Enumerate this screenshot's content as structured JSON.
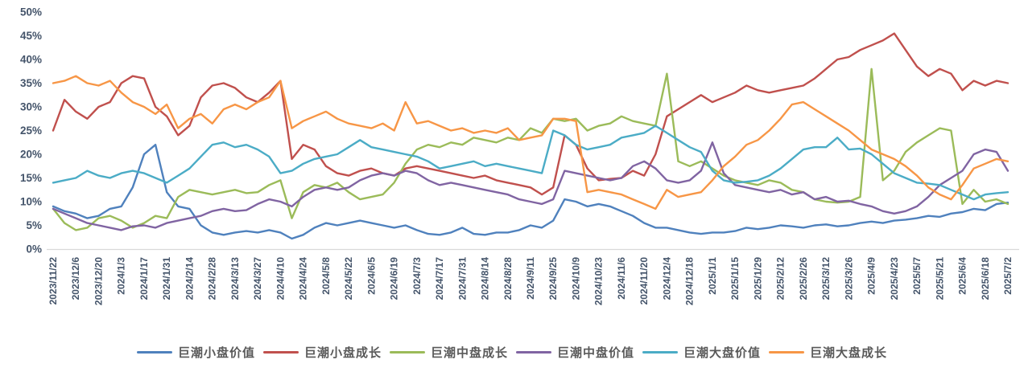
{
  "style": {
    "background": "#FFFFFF",
    "axis_label_color": "#44546A",
    "axis_line_color": "#D9D9D9",
    "legend_text_color": "#595959"
  },
  "chart_data": {
    "type": "line",
    "title": "",
    "xlabel": "",
    "ylabel": "",
    "grid": false,
    "legend_position": "bottom",
    "y_axis": {
      "min": 0,
      "max": 50,
      "tick_step": 5,
      "tick_labels": [
        "0%",
        "5%",
        "10%",
        "15%",
        "20%",
        "25%",
        "30%",
        "35%",
        "40%",
        "45%",
        "50%"
      ]
    },
    "x_axis": {
      "start": "2023/11/22",
      "end": "2025/7/2",
      "tick_interval_days": 14,
      "tick_labels": [
        "2023/11/22",
        "2023/12/6",
        "2023/12/20",
        "2024/1/3",
        "2024/1/17",
        "2024/1/31",
        "2024/2/14",
        "2024/2/28",
        "2024/3/13",
        "2024/3/27",
        "2024/4/10",
        "2024/4/24",
        "2024/5/8",
        "2024/5/22",
        "2024/6/5",
        "2024/6/19",
        "2024/7/3",
        "2024/7/17",
        "2024/7/31",
        "2024/8/14",
        "2024/8/28",
        "2024/9/11",
        "2024/9/25",
        "2024/10/9",
        "2024/10/23",
        "2024/11/6",
        "2024/11/20",
        "2024/12/4",
        "2024/12/18",
        "2025/1/1",
        "2025/1/15",
        "2025/1/29",
        "2025/2/12",
        "2025/2/26",
        "2025/3/12",
        "2025/3/26",
        "2025/4/9",
        "2025/4/23",
        "2025/5/7",
        "2025/5/21",
        "2025/6/4",
        "2025/6/18",
        "2025/7/2"
      ]
    },
    "sample_interval_days": 7,
    "series": [
      {
        "name": "巨潮小盘价值",
        "color": "#4F81BD",
        "values": [
          9,
          8,
          7.5,
          6.5,
          7,
          8.5,
          9,
          13,
          20,
          22,
          12,
          9,
          8.5,
          5,
          3.5,
          3,
          3.5,
          3.8,
          3.5,
          4,
          3.5,
          2.2,
          3,
          4.5,
          5.5,
          5,
          5.5,
          6,
          5.5,
          5,
          4.5,
          5,
          4,
          3.2,
          3,
          3.5,
          4.5,
          3.2,
          3,
          3.5,
          3.5,
          4,
          5,
          4.5,
          6,
          10.5,
          10,
          9,
          9.5,
          9,
          8,
          7,
          5.5,
          4.5,
          4.5,
          4,
          3.5,
          3.2,
          3.5,
          3.5,
          3.8,
          4.5,
          4.2,
          4.5,
          5,
          4.8,
          4.5,
          5,
          5.2,
          4.8,
          5,
          5.5,
          5.8,
          5.5,
          6,
          6.2,
          6.5,
          7,
          6.8,
          7.5,
          7.8,
          8.5,
          8.2,
          9.5,
          9.8
        ]
      },
      {
        "name": "巨潮小盘成长",
        "color": "#C0504D",
        "values": [
          25,
          31.5,
          29,
          27.5,
          30,
          31,
          35,
          36.5,
          36,
          30,
          28,
          24,
          26,
          32,
          34.5,
          35,
          34,
          32,
          31,
          33,
          35.5,
          19,
          22,
          21,
          17.5,
          16,
          15.5,
          16.5,
          17,
          16,
          15.5,
          17,
          17.5,
          17,
          16.5,
          16,
          15.5,
          15,
          15.5,
          14.5,
          14,
          13.5,
          13,
          11.5,
          13,
          24,
          22,
          17,
          14.5,
          14.8,
          15,
          16.5,
          15.5,
          20,
          28,
          29.5,
          31,
          32.5,
          31,
          32,
          33,
          34.5,
          33.5,
          33,
          33.5,
          34,
          34.5,
          36,
          38,
          40,
          40.5,
          42,
          43,
          44,
          45.5,
          42,
          38.5,
          36.5,
          38,
          37,
          33.5,
          35.5,
          34.5,
          35.5,
          35
        ]
      },
      {
        "name": "巨潮中盘成长",
        "color": "#9BBB59",
        "values": [
          8.5,
          5.5,
          4,
          4.5,
          6.5,
          7,
          6,
          4.5,
          5.5,
          7,
          6.5,
          11,
          12.5,
          12,
          11.5,
          12,
          12.5,
          11.8,
          12,
          13.5,
          14.5,
          6.5,
          12,
          13.5,
          13,
          14,
          12,
          10.5,
          11,
          11.5,
          14,
          18,
          21,
          22,
          21.5,
          22.5,
          22,
          23.5,
          23,
          22.5,
          23.5,
          23,
          25.5,
          24.5,
          27.5,
          27,
          27.5,
          25,
          26,
          26.5,
          28,
          27,
          26.5,
          26,
          37,
          18.5,
          17.5,
          18.5,
          17,
          15.5,
          14.5,
          14,
          13.5,
          14.5,
          14,
          12.5,
          12,
          10.5,
          10,
          9.8,
          10,
          11,
          38,
          14.5,
          16.5,
          20.5,
          22.5,
          24,
          25.5,
          25,
          9.5,
          12.5,
          10,
          10.5,
          9.5
        ]
      },
      {
        "name": "巨潮中盘价值",
        "color": "#8064A2",
        "values": [
          8.5,
          7.5,
          6.5,
          5.5,
          5,
          4.5,
          4,
          4.8,
          5,
          4.5,
          5.5,
          6,
          6.5,
          7,
          8,
          8.5,
          8,
          8.2,
          9.5,
          10.5,
          10,
          9,
          11,
          12.5,
          13,
          12.5,
          13,
          14.5,
          15.5,
          16,
          15.5,
          16.5,
          16,
          14.5,
          13.5,
          14,
          13.5,
          13,
          12.5,
          12,
          11.5,
          10.5,
          10,
          9.5,
          10.5,
          16.5,
          16,
          15.5,
          15,
          14.5,
          15,
          17.5,
          18.5,
          17,
          14.5,
          14,
          14.5,
          16.5,
          22.5,
          16,
          13.5,
          13,
          12.5,
          12,
          12.5,
          11.5,
          12,
          10.5,
          11,
          10,
          10.2,
          9.5,
          9,
          8,
          7.5,
          8,
          9,
          11,
          13.5,
          15,
          16.5,
          20,
          21,
          20.5,
          16.5
        ]
      },
      {
        "name": "巨潮大盘价值",
        "color": "#4BACC6",
        "values": [
          14,
          14.5,
          15,
          16.5,
          15.5,
          15,
          16,
          16.5,
          16,
          15,
          14,
          15.5,
          17,
          19.5,
          22,
          22.5,
          21.5,
          22,
          21,
          19.5,
          16,
          16.5,
          18,
          19,
          19.5,
          20,
          21.5,
          23,
          21.5,
          21,
          20.5,
          20,
          19.5,
          18.5,
          17,
          17.5,
          18,
          18.5,
          17.5,
          18,
          17.5,
          17,
          16.5,
          16,
          25,
          24,
          22,
          21,
          21.5,
          22,
          23.5,
          24,
          24.5,
          26,
          24.5,
          23,
          21.5,
          20.5,
          16.5,
          14.5,
          14,
          14.2,
          14.5,
          15.5,
          17,
          19,
          21,
          21.5,
          21.5,
          23.5,
          21,
          21.2,
          20,
          18,
          16,
          15,
          14,
          13.8,
          13.5,
          12.5,
          11.5,
          10.5,
          11.5,
          11.8,
          12
        ]
      },
      {
        "name": "巨潮大盘成长",
        "color": "#F79646",
        "values": [
          35,
          35.5,
          36.5,
          35,
          34.5,
          35.5,
          33,
          31,
          30,
          28.5,
          30.5,
          25.5,
          27.5,
          28.5,
          26.5,
          29.5,
          30.5,
          29.5,
          31,
          32,
          35.5,
          25.5,
          27,
          28,
          29,
          27.5,
          26.5,
          26,
          25.5,
          26.5,
          25,
          31,
          26.5,
          27,
          26,
          25,
          25.5,
          24.5,
          25,
          24.5,
          25.5,
          23,
          23.5,
          24,
          27.5,
          27.5,
          27,
          12,
          12.5,
          12,
          11.5,
          10.5,
          9.5,
          8.5,
          12.5,
          11,
          11.5,
          12,
          14.5,
          17.5,
          19.5,
          22,
          23,
          25,
          27.5,
          30.5,
          31,
          29.5,
          28,
          26.5,
          25,
          23,
          21,
          20,
          19,
          17.5,
          15.5,
          13,
          11.5,
          10.5,
          13.5,
          17,
          18,
          19,
          18.5
        ]
      }
    ],
    "legend_labels": [
      "巨潮小盘价值",
      "巨潮小盘成长",
      "巨潮中盘成长",
      "巨潮中盘价值",
      "巨潮大盘价值",
      "巨潮大盘成长"
    ]
  }
}
